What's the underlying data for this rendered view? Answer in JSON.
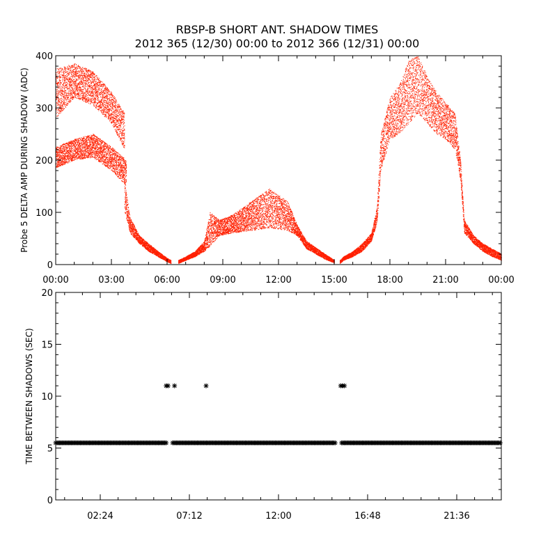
{
  "title_line1": "RBSP-B SHORT ANT. SHADOW TIMES",
  "title_line2": "2012 365 (12/30) 00:00 to 2012 366 (12/31) 00:00",
  "colors": {
    "top_series": "#ff2000",
    "bottom_series": "#000000",
    "axes": "#000000",
    "background": "#ffffff"
  },
  "chart_data": [
    {
      "type": "scatter",
      "ylabel": "Probe 5 DELTA AMP DURING SHADOW (ADC)",
      "xlabel": "",
      "x_units": "hours since 2012-12-30 00:00",
      "xlim": [
        0,
        24
      ],
      "ylim": [
        0,
        400
      ],
      "x_tick_labels": [
        "00:00",
        "03:00",
        "06:00",
        "09:00",
        "12:00",
        "15:00",
        "18:00",
        "21:00",
        "00:00"
      ],
      "y_tick_labels": [
        "0",
        "100",
        "200",
        "300",
        "400"
      ],
      "series": [
        {
          "color": "#ff2000",
          "marker": "dot",
          "envelopes": [
            {
              "x": [
                0.0,
                1.0,
                2.0,
                3.0,
                3.7
              ],
              "lower": [
                280,
                320,
                305,
                270,
                220
              ],
              "upper": [
                375,
                385,
                370,
                330,
                290
              ]
            },
            {
              "x": [
                0.0,
                1.0,
                2.0,
                3.0,
                3.8
              ],
              "lower": [
                185,
                200,
                205,
                180,
                150
              ],
              "upper": [
                225,
                240,
                250,
                225,
                200
              ]
            },
            {
              "x": [
                3.7,
                4.0,
                4.5,
                5.0,
                5.5,
                6.0,
                6.2
              ],
              "lower": [
                100,
                60,
                40,
                25,
                15,
                5,
                2
              ],
              "upper": [
                160,
                90,
                55,
                40,
                25,
                12,
                8
              ]
            },
            {
              "x": [
                6.6,
                7.0,
                7.5,
                8.0,
                8.3,
                8.8,
                9.5,
                10.5,
                11.5,
                12.5,
                13.0,
                13.5,
                14.0,
                14.5,
                15.0
              ],
              "lower": [
                2,
                8,
                15,
                25,
                35,
                55,
                60,
                65,
                70,
                65,
                55,
                30,
                20,
                10,
                3
              ],
              "upper": [
                8,
                15,
                25,
                45,
                100,
                85,
                95,
                120,
                145,
                120,
                75,
                45,
                32,
                20,
                8
              ]
            },
            {
              "x": [
                15.3,
                15.5,
                16.0,
                16.5,
                17.0,
                17.3,
                17.5,
                18.0,
                18.5,
                19.0,
                19.5,
                20.0,
                20.5,
                21.0,
                21.5,
                21.8,
                22.0,
                22.5,
                23.0,
                23.5,
                24.0
              ],
              "lower": [
                2,
                8,
                15,
                25,
                45,
                80,
                180,
                240,
                250,
                270,
                290,
                270,
                250,
                240,
                220,
                160,
                60,
                40,
                25,
                15,
                8
              ],
              "upper": [
                8,
                15,
                25,
                40,
                60,
                110,
                250,
                320,
                345,
                390,
                400,
                360,
                330,
                310,
                290,
                200,
                85,
                55,
                40,
                30,
                20
              ]
            }
          ]
        }
      ]
    },
    {
      "type": "scatter",
      "ylabel": "TIME BETWEEN SHADOWS (SEC)",
      "xlabel": "",
      "x_units": "hours since 2012-12-30 00:00",
      "xlim": [
        0,
        24
      ],
      "ylim": [
        0,
        20
      ],
      "x_tick_values": [
        2.4,
        7.2,
        12.0,
        16.8,
        21.6
      ],
      "x_tick_labels": [
        "02:24",
        "07:12",
        "12:00",
        "16:48",
        "21:36"
      ],
      "y_tick_labels": [
        "0",
        "5",
        "10",
        "15",
        "20"
      ],
      "series": [
        {
          "color": "#000000",
          "marker": "asterisk",
          "baseline_value": 5.5,
          "baseline_segments": [
            [
              0.0,
              6.0
            ],
            [
              6.3,
              15.1
            ],
            [
              15.4,
              24.0
            ]
          ],
          "outliers_x": [
            5.95,
            6.05,
            6.4,
            8.1,
            15.35,
            15.45,
            15.55
          ],
          "outliers_y": [
            11,
            11,
            11,
            11,
            11,
            11,
            11
          ]
        }
      ]
    }
  ]
}
